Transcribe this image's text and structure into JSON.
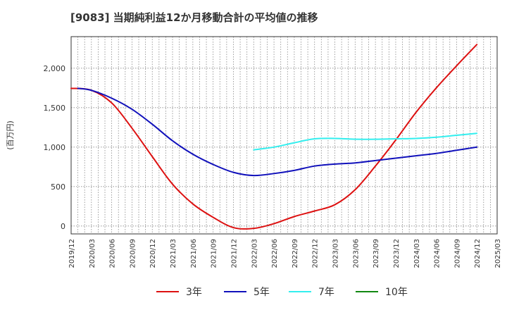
{
  "chart_data": {
    "type": "line",
    "title": "[9083]  当期純利益12か月移動合計の平均値の推移",
    "ylabel": "(百万円)",
    "xlabel": "",
    "ylim": [
      -100,
      2400
    ],
    "yticks": [
      0,
      500,
      1000,
      1500,
      2000
    ],
    "ytick_labels": [
      "0",
      "500",
      "1,000",
      "1,500",
      "2,000"
    ],
    "x_start": "2019/12",
    "xtick_labels": [
      "2019/12",
      "2020/03",
      "2020/06",
      "2020/09",
      "2020/12",
      "2021/03",
      "2021/06",
      "2021/09",
      "2021/12",
      "2022/03",
      "2022/06",
      "2022/09",
      "2022/12",
      "2023/03",
      "2023/06",
      "2023/09",
      "2023/12",
      "2024/03",
      "2024/06",
      "2024/09",
      "2024/12",
      "2025/03"
    ],
    "grid": true,
    "legend_position": "bottom",
    "series": [
      {
        "name": "3年",
        "color": "#dd1111",
        "points": [
          [
            "2019/12",
            1745
          ],
          [
            "2020/03",
            1720
          ],
          [
            "2020/06",
            1560
          ],
          [
            "2020/09",
            1240
          ],
          [
            "2020/12",
            880
          ],
          [
            "2021/03",
            530
          ],
          [
            "2021/06",
            280
          ],
          [
            "2021/09",
            110
          ],
          [
            "2021/12",
            -20
          ],
          [
            "2022/03",
            -30
          ],
          [
            "2022/06",
            30
          ],
          [
            "2022/09",
            120
          ],
          [
            "2022/12",
            190
          ],
          [
            "2023/03",
            270
          ],
          [
            "2023/06",
            460
          ],
          [
            "2023/09",
            760
          ],
          [
            "2023/12",
            1090
          ],
          [
            "2024/03",
            1440
          ],
          [
            "2024/06",
            1750
          ],
          [
            "2024/09",
            2030
          ],
          [
            "2024/12",
            2300
          ]
        ]
      },
      {
        "name": "5年",
        "color": "#1111bb",
        "points": [
          [
            "2020/01",
            1745
          ],
          [
            "2020/03",
            1720
          ],
          [
            "2020/06",
            1620
          ],
          [
            "2020/09",
            1480
          ],
          [
            "2020/12",
            1290
          ],
          [
            "2021/03",
            1080
          ],
          [
            "2021/06",
            910
          ],
          [
            "2021/09",
            780
          ],
          [
            "2021/12",
            680
          ],
          [
            "2022/03",
            640
          ],
          [
            "2022/06",
            665
          ],
          [
            "2022/09",
            705
          ],
          [
            "2022/12",
            760
          ],
          [
            "2023/03",
            785
          ],
          [
            "2023/06",
            800
          ],
          [
            "2023/09",
            830
          ],
          [
            "2023/12",
            860
          ],
          [
            "2024/03",
            890
          ],
          [
            "2024/06",
            920
          ],
          [
            "2024/09",
            960
          ],
          [
            "2024/12",
            1000
          ]
        ]
      },
      {
        "name": "7年",
        "color": "#33eeee",
        "points": [
          [
            "2022/03",
            965
          ],
          [
            "2022/06",
            1000
          ],
          [
            "2022/09",
            1055
          ],
          [
            "2022/12",
            1105
          ],
          [
            "2023/03",
            1110
          ],
          [
            "2023/06",
            1100
          ],
          [
            "2023/09",
            1100
          ],
          [
            "2023/12",
            1105
          ],
          [
            "2024/03",
            1110
          ],
          [
            "2024/06",
            1125
          ],
          [
            "2024/09",
            1150
          ],
          [
            "2024/12",
            1175
          ]
        ]
      },
      {
        "name": "10年",
        "color": "#118811",
        "points": []
      }
    ]
  }
}
